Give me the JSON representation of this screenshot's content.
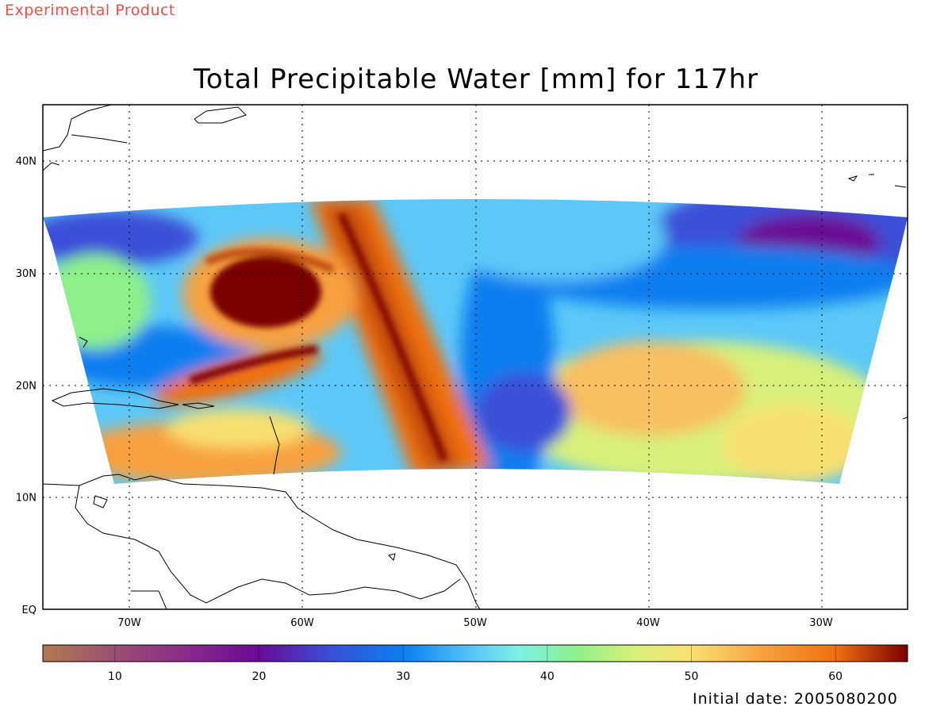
{
  "header": {
    "experimental_label": "Experimental Product",
    "title": "Total Precipitable Water [mm] for 117hr"
  },
  "footer": {
    "initial_date_label": "Initial date: 2005080200"
  },
  "map": {
    "projection": "longitude-latitude",
    "lon_range": [
      -75,
      -25
    ],
    "lat_range": [
      0,
      45
    ],
    "grid": "dotted",
    "lon_tick_labels": [
      {
        "lon": -70,
        "label": "70W"
      },
      {
        "lon": -60,
        "label": "60W"
      },
      {
        "lon": -50,
        "label": "50W"
      },
      {
        "lon": -40,
        "label": "40W"
      },
      {
        "lon": -30,
        "label": "30W"
      }
    ],
    "lat_tick_labels": [
      {
        "lat": 0,
        "label": "EQ"
      },
      {
        "lat": 10,
        "label": "10N"
      },
      {
        "lat": 20,
        "label": "20N"
      },
      {
        "lat": 30,
        "label": "30N"
      },
      {
        "lat": 40,
        "label": "40N"
      }
    ],
    "features": {
      "hurricane_center": {
        "lon": -62.5,
        "lat": 28.0,
        "value_mm": 65
      },
      "moist_band_axis": [
        [
          -58,
          36
        ],
        [
          -55,
          25
        ],
        [
          -52,
          14
        ]
      ],
      "dry_slot_axis": [
        [
          -50,
          35
        ],
        [
          -48,
          25
        ],
        [
          -45,
          14
        ]
      ]
    }
  },
  "colorbar": {
    "range": [
      5,
      65
    ],
    "ticks": [
      {
        "value": 10,
        "label": "10"
      },
      {
        "value": 20,
        "label": "20"
      },
      {
        "value": 30,
        "label": "30"
      },
      {
        "value": 40,
        "label": "40"
      },
      {
        "value": 50,
        "label": "50"
      },
      {
        "value": 60,
        "label": "60"
      }
    ],
    "stops": [
      {
        "value": 5,
        "color": "#b07a50"
      },
      {
        "value": 10,
        "color": "#9a4f72"
      },
      {
        "value": 15,
        "color": "#8b2a8a"
      },
      {
        "value": 20,
        "color": "#6a0a96"
      },
      {
        "value": 25,
        "color": "#3a50d8"
      },
      {
        "value": 30,
        "color": "#0a7ef0"
      },
      {
        "value": 35,
        "color": "#5cc8f8"
      },
      {
        "value": 38,
        "color": "#7ef0e8"
      },
      {
        "value": 42,
        "color": "#8ef08a"
      },
      {
        "value": 46,
        "color": "#d8f07a"
      },
      {
        "value": 50,
        "color": "#f8e070"
      },
      {
        "value": 55,
        "color": "#f8a040"
      },
      {
        "value": 60,
        "color": "#f07010"
      },
      {
        "value": 65,
        "color": "#7a0000"
      }
    ]
  }
}
